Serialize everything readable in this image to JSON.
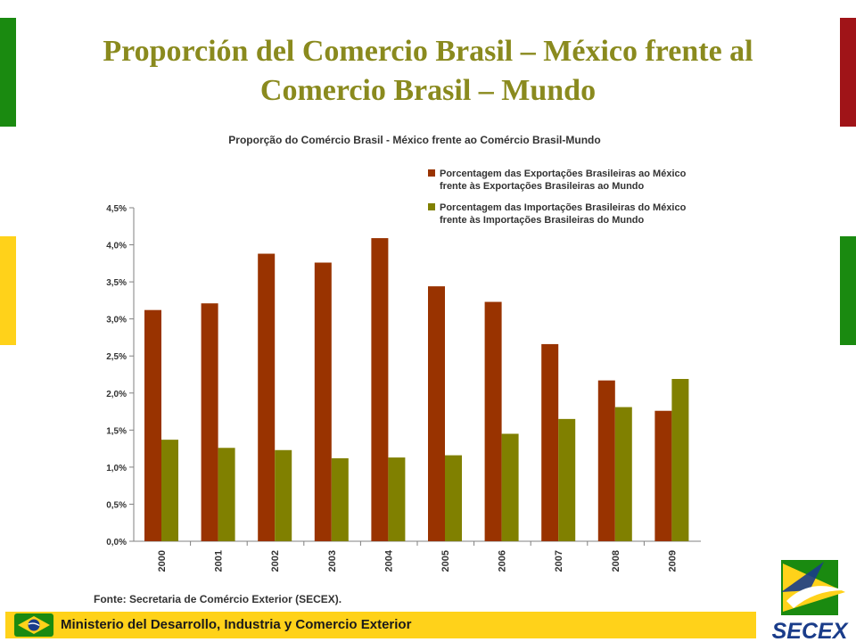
{
  "slide": {
    "title": "Proporción del Comercio Brasil – México frente al Comercio Brasil – Mundo",
    "footer_text": "Ministerio del Desarrollo, Industria y Comercio Exterior",
    "logo_text": "SECEX",
    "colors": {
      "title": "#8a8a1e",
      "bar_green": "#1a8a10",
      "bar_red": "#a01418",
      "bar_yellow": "#ffd21a",
      "footer_bg": "#ffd21a"
    },
    "icons": [
      "brazil-flag-icon",
      "secex-logo-icon"
    ]
  },
  "chart_data": {
    "type": "bar",
    "title": "Proporção do Comércio Brasil - México frente ao Comércio Brasil-Mundo",
    "categories": [
      "2000",
      "2001",
      "2002",
      "2003",
      "2004",
      "2005",
      "2006",
      "2007",
      "2008",
      "2009"
    ],
    "series": [
      {
        "name": "Porcentagem das Exportações Brasileiras ao México frente às Exportações Brasileiras ao Mundo",
        "legend_lines": [
          "Porcentagem das Exportações Brasileiras ao México",
          "frente às Exportações Brasileiras ao Mundo"
        ],
        "color": "#993300",
        "values": [
          3.12,
          3.21,
          3.88,
          3.76,
          4.09,
          3.44,
          3.23,
          2.66,
          2.17,
          1.76
        ]
      },
      {
        "name": "Porcentagem das Importações Brasileiras do México frente às Importações Brasileiras do Mundo",
        "legend_lines": [
          "Porcentagem das Importações Brasileiras do México",
          "frente às Importações Brasileiras do Mundo"
        ],
        "color": "#808000",
        "values": [
          1.37,
          1.26,
          1.23,
          1.12,
          1.13,
          1.16,
          1.45,
          1.65,
          1.81,
          2.19
        ]
      }
    ],
    "ylim": [
      0,
      4.5
    ],
    "yticks": [
      "0,0%",
      "0,5%",
      "1,0%",
      "1,5%",
      "2,0%",
      "2,5%",
      "3,0%",
      "3,5%",
      "4,0%",
      "4,5%"
    ],
    "grid": false,
    "legend_position": "top-right",
    "source_note": "Fonte: Secretaria de Comércio Exterior (SECEX)."
  }
}
